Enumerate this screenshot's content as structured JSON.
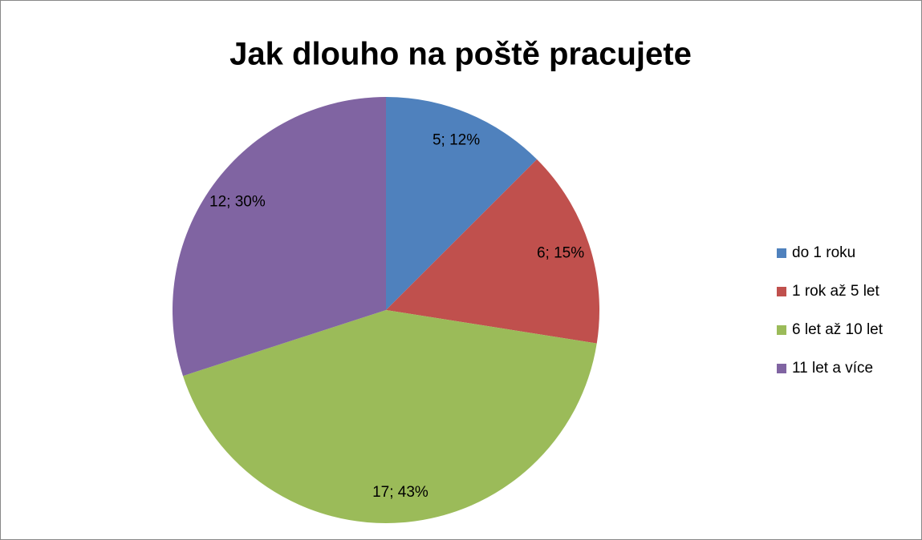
{
  "chart_data": {
    "type": "pie",
    "title": "Jak dlouho na poště pracujete",
    "categories": [
      "do 1 roku",
      "1 rok až 5 let",
      "6 let až 10 let",
      "11 let a více"
    ],
    "values": [
      5,
      6,
      17,
      12
    ],
    "value_labels": [
      "5; 12%",
      "6; 15%",
      "17; 43%",
      "12; 30%"
    ],
    "colors": [
      "#4f81bd",
      "#c0504d",
      "#9bbb59",
      "#8064a2"
    ],
    "legend": "right"
  }
}
